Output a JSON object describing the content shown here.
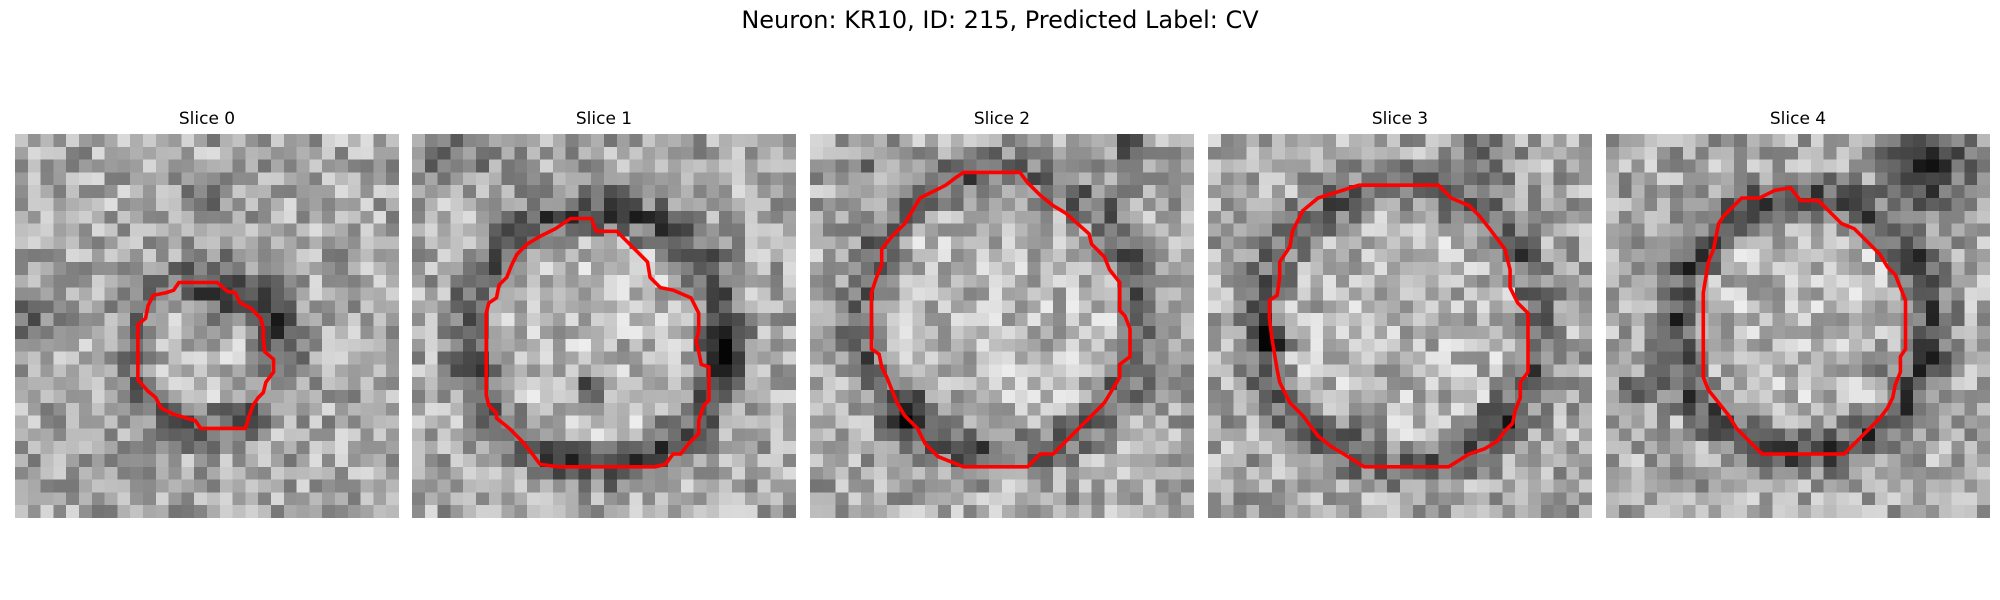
{
  "figure": {
    "title": "Neuron: KR10, ID: 215, Predicted Label: CV",
    "contour_color": "#ff0000"
  },
  "panels": [
    {
      "title": "Slice 0"
    },
    {
      "title": "Slice 1"
    },
    {
      "title": "Slice 2"
    },
    {
      "title": "Slice 3"
    },
    {
      "title": "Slice 4"
    }
  ]
}
